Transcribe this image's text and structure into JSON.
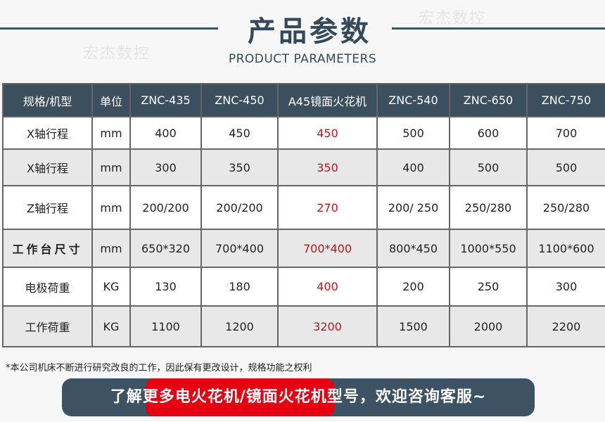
{
  "header": {
    "title": "产品参数",
    "subtitle": "PRODUCT PARAMETERS",
    "watermark": "宏杰数控"
  },
  "colors": {
    "header_bg": "#3b4f5e",
    "accent_line": "#2f5873",
    "highlight_red": "#e50012",
    "highlight_text": "#c0151b"
  },
  "table": {
    "columns": [
      "规格/机型",
      "单位",
      "ZNC-435",
      "ZNC-450",
      "A45镜面火花机",
      "ZNC-540",
      "ZNC-650",
      "ZNC-750"
    ],
    "rows": [
      [
        "X轴行程",
        "mm",
        "400",
        "450",
        "450",
        "500",
        "600",
        "700"
      ],
      [
        "X轴行程",
        "mm",
        "300",
        "350",
        "350",
        "400",
        "500",
        "500"
      ],
      [
        "Z轴行程",
        "mm",
        "200/200",
        "200/200",
        "270",
        "200/ 250",
        "250/280",
        "250/280"
      ],
      [
        "工作台尺寸",
        "mm",
        "650*320",
        "700*400",
        "700*400",
        "800*450",
        "1000*550",
        "1100*600"
      ],
      [
        "电极荷重",
        "KG",
        "130",
        "180",
        "400",
        "200",
        "250",
        "300"
      ],
      [
        "工作荷重",
        "KG",
        "1100",
        "1200",
        "3200",
        "1500",
        "2000",
        "2200"
      ]
    ]
  },
  "note": "*本公司机床不断进行研究改良的工作，因此保有更改设计，规格功能之权利",
  "banner": {
    "prefix": "了解更多",
    "highlight": "电火花机/镜面火花机",
    "suffix": "型号，欢迎咨询客服~"
  }
}
